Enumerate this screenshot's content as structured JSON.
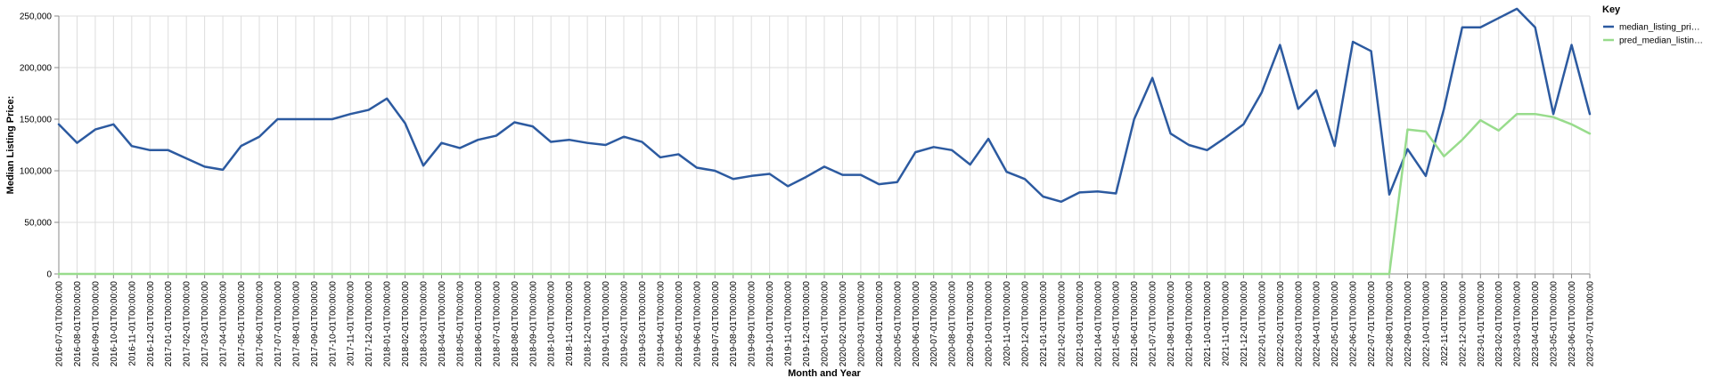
{
  "chart_data": {
    "type": "line",
    "xlabel": "Month and Year",
    "ylabel": "Median Listing Price:",
    "ylim": [
      0,
      250000
    ],
    "y_ticks": [
      "0",
      "50,000",
      "100,000",
      "150,000",
      "200,000",
      "250,000"
    ],
    "y_tick_values": [
      0,
      50000,
      100000,
      150000,
      200000,
      250000
    ],
    "grid": true,
    "legend": {
      "title": "Key",
      "placement": "right"
    },
    "categories": [
      "2016-07-01T00:00:00",
      "2016-08-01T00:00:00",
      "2016-09-01T00:00:00",
      "2016-10-01T00:00:00",
      "2016-11-01T00:00:00",
      "2016-12-01T00:00:00",
      "2017-01-01T00:00:00",
      "2017-02-01T00:00:00",
      "2017-03-01T00:00:00",
      "2017-04-01T00:00:00",
      "2017-05-01T00:00:00",
      "2017-06-01T00:00:00",
      "2017-07-01T00:00:00",
      "2017-08-01T00:00:00",
      "2017-09-01T00:00:00",
      "2017-10-01T00:00:00",
      "2017-11-01T00:00:00",
      "2017-12-01T00:00:00",
      "2018-01-01T00:00:00",
      "2018-02-01T00:00:00",
      "2018-03-01T00:00:00",
      "2018-04-01T00:00:00",
      "2018-05-01T00:00:00",
      "2018-06-01T00:00:00",
      "2018-07-01T00:00:00",
      "2018-08-01T00:00:00",
      "2018-09-01T00:00:00",
      "2018-10-01T00:00:00",
      "2018-11-01T00:00:00",
      "2018-12-01T00:00:00",
      "2019-01-01T00:00:00",
      "2019-02-01T00:00:00",
      "2019-03-01T00:00:00",
      "2019-04-01T00:00:00",
      "2019-05-01T00:00:00",
      "2019-06-01T00:00:00",
      "2019-07-01T00:00:00",
      "2019-08-01T00:00:00",
      "2019-09-01T00:00:00",
      "2019-10-01T00:00:00",
      "2019-11-01T00:00:00",
      "2019-12-01T00:00:00",
      "2020-01-01T00:00:00",
      "2020-02-01T00:00:00",
      "2020-03-01T00:00:00",
      "2020-04-01T00:00:00",
      "2020-05-01T00:00:00",
      "2020-06-01T00:00:00",
      "2020-07-01T00:00:00",
      "2020-08-01T00:00:00",
      "2020-09-01T00:00:00",
      "2020-10-01T00:00:00",
      "2020-11-01T00:00:00",
      "2020-12-01T00:00:00",
      "2021-01-01T00:00:00",
      "2021-02-01T00:00:00",
      "2021-03-01T00:00:00",
      "2021-04-01T00:00:00",
      "2021-05-01T00:00:00",
      "2021-06-01T00:00:00",
      "2021-07-01T00:00:00",
      "2021-08-01T00:00:00",
      "2021-09-01T00:00:00",
      "2021-10-01T00:00:00",
      "2021-11-01T00:00:00",
      "2021-12-01T00:00:00",
      "2022-01-01T00:00:00",
      "2022-02-01T00:00:00",
      "2022-03-01T00:00:00",
      "2022-04-01T00:00:00",
      "2022-05-01T00:00:00",
      "2022-06-01T00:00:00",
      "2022-07-01T00:00:00",
      "2022-08-01T00:00:00",
      "2022-09-01T00:00:00",
      "2022-10-01T00:00:00",
      "2022-11-01T00:00:00",
      "2022-12-01T00:00:00",
      "2023-01-01T00:00:00",
      "2023-02-01T00:00:00",
      "2023-03-01T00:00:00",
      "2023-04-01T00:00:00",
      "2023-05-01T00:00:00",
      "2023-06-01T00:00:00",
      "2023-07-01T00:00:00"
    ],
    "series": [
      {
        "name": "median_listing_pri…",
        "color": "#2c5aa0",
        "values": [
          145000,
          127000,
          140000,
          145000,
          124000,
          120000,
          120000,
          112000,
          104000,
          101000,
          124000,
          133000,
          150000,
          150000,
          150000,
          150000,
          155000,
          159000,
          170000,
          146000,
          105000,
          127000,
          122000,
          130000,
          134000,
          147000,
          143000,
          128000,
          130000,
          127000,
          125000,
          133000,
          128000,
          113000,
          116000,
          103000,
          100000,
          92000,
          95000,
          97000,
          85000,
          94000,
          104000,
          96000,
          96000,
          87000,
          89000,
          118000,
          123000,
          120000,
          106000,
          131000,
          99000,
          92000,
          75000,
          70000,
          79000,
          80000,
          78000,
          150000,
          190000,
          136000,
          125000,
          120000,
          132000,
          145000,
          176000,
          222000,
          160000,
          178000,
          124000,
          225000,
          216000,
          77000,
          121000,
          95000,
          160000,
          239000,
          239000,
          248000,
          257000,
          239000,
          155000,
          222000,
          155000
        ]
      },
      {
        "name": "pred_median_listin…",
        "color": "#98dc8c",
        "values": [
          0,
          0,
          0,
          0,
          0,
          0,
          0,
          0,
          0,
          0,
          0,
          0,
          0,
          0,
          0,
          0,
          0,
          0,
          0,
          0,
          0,
          0,
          0,
          0,
          0,
          0,
          0,
          0,
          0,
          0,
          0,
          0,
          0,
          0,
          0,
          0,
          0,
          0,
          0,
          0,
          0,
          0,
          0,
          0,
          0,
          0,
          0,
          0,
          0,
          0,
          0,
          0,
          0,
          0,
          0,
          0,
          0,
          0,
          0,
          0,
          0,
          0,
          0,
          0,
          0,
          0,
          0,
          0,
          0,
          0,
          0,
          0,
          0,
          0,
          140000,
          138000,
          114000,
          130000,
          149000,
          139000,
          155000,
          155000,
          152000,
          145000,
          136000
        ]
      }
    ]
  }
}
